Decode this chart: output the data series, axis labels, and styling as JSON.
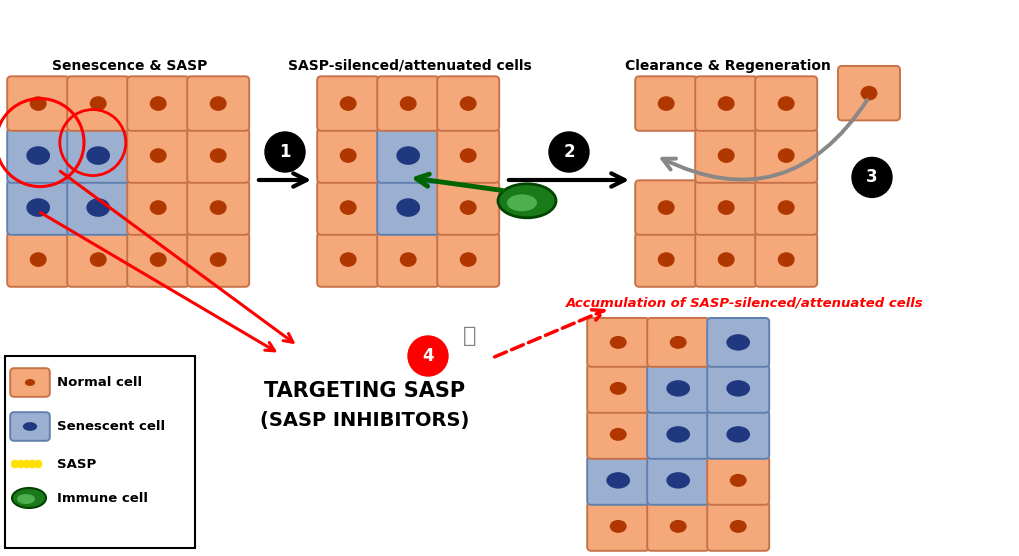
{
  "normal_cell_color": "#F5A87A",
  "normal_cell_border": "#C8724A",
  "senescent_cell_color": "#9BAFD0",
  "senescent_cell_border": "#6080B0",
  "normal_nucleus_color": "#B03800",
  "senescent_nucleus_color": "#203880",
  "immune_cell_outer": "#1A7A1A",
  "immune_cell_inner": "#4CAF50",
  "sasp_color": "#FFE000",
  "sasp_border": "#C8A000",
  "title1": "Senescence & SASP",
  "title2": "SASP-silenced/attenuated cells",
  "title3": "Clearance & Regeneration",
  "label_accumulation": "Accumulation of SASP-silenced/attenuated cells",
  "label_targeting_line1": "TARGETING SASP",
  "label_targeting_line2": "(SASP INHIBITORS)",
  "legend_normal": "Normal cell",
  "legend_senescent": "Senescent cell",
  "legend_sasp": "SASP",
  "legend_immune": "Immune cell",
  "bg_color": "#FFFFFF"
}
